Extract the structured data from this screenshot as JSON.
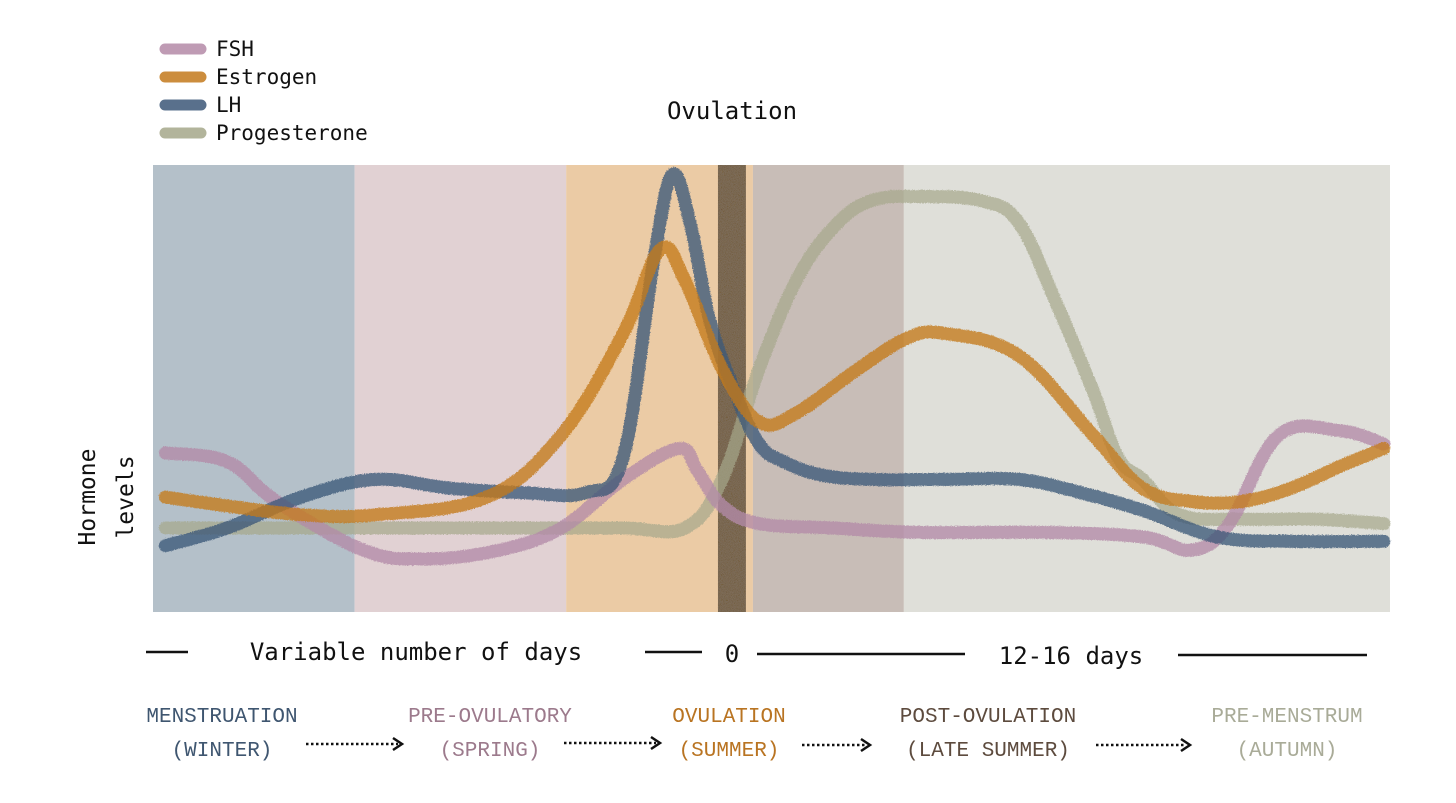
{
  "colors": {
    "FSH": "#b48aa8",
    "Estrogen": "#c47a1c",
    "LH": "#3d5878",
    "Progesterone": "#a5a88a",
    "ovulation_bar": "#5b4a34"
  },
  "chart_data": {
    "type": "line",
    "title": "",
    "ylabel": "Hormone levels",
    "xlabel": "",
    "annotation": "Ovulation",
    "legend_position": "top-left",
    "grid": false,
    "ylim": [
      0,
      100
    ],
    "xlim": [
      0,
      100
    ],
    "legend": [
      {
        "name": "FSH",
        "color": "#b48aa8"
      },
      {
        "name": "Estrogen",
        "color": "#c47a1c"
      },
      {
        "name": "LH",
        "color": "#3d5878"
      },
      {
        "name": "Progesterone",
        "color": "#a5a88a"
      }
    ],
    "phases": [
      {
        "name": "MENSTRUATION",
        "season": "(WINTER)",
        "start": 0,
        "end": 16.3,
        "color": "#b4c0c9",
        "text_color": "#3f5670"
      },
      {
        "name": "PRE-OVULATORY",
        "season": "(SPRING)",
        "start": 16.3,
        "end": 33.4,
        "color": "#e1d1d3",
        "text_color": "#9c7a8c"
      },
      {
        "name": "OVULATION",
        "season": "(SUMMER)",
        "start": 33.4,
        "end": 48.5,
        "color": "#ebcba5",
        "text_color": "#b97422"
      },
      {
        "name": "POST-OVULATION",
        "season": "(LATE SUMMER)",
        "start": 48.5,
        "end": 60.7,
        "color": "#c8bdb7",
        "text_color": "#5d4b3e"
      },
      {
        "name": "PRE-MENSTRUM",
        "season": "(AUTUMN)",
        "start": 60.7,
        "end": 100,
        "color": "#dfdfd9",
        "text_color": "#a9ab98"
      }
    ],
    "ovulation_x": 46.8,
    "series": [
      {
        "name": "FSH",
        "x": [
          1,
          6,
          10,
          17,
          22,
          28,
          33,
          38,
          42.5,
          44,
          46,
          49,
          55,
          62,
          72,
          80,
          84,
          87,
          91,
          96,
          99.5
        ],
        "values": [
          36,
          34,
          25,
          14,
          12,
          14,
          19,
          30,
          37,
          32,
          24,
          20,
          19,
          18,
          18,
          17,
          14,
          20,
          40,
          41,
          38
        ]
      },
      {
        "name": "Estrogen",
        "x": [
          1,
          6,
          12,
          18,
          27,
          33,
          38,
          41,
          43,
          46,
          49,
          52,
          57,
          61,
          64,
          70,
          76,
          80,
          84,
          88,
          92,
          96,
          99.5
        ],
        "values": [
          26,
          24,
          22,
          22,
          26,
          40,
          63,
          82,
          75,
          55,
          43,
          45,
          55,
          62,
          63,
          58,
          40,
          28,
          25,
          25,
          28,
          33,
          37
        ]
      },
      {
        "name": "LH",
        "x": [
          1,
          6,
          12,
          18,
          24,
          30,
          35,
          38,
          40.5,
          42,
          43.5,
          45,
          47,
          49,
          51,
          54,
          58,
          64,
          70,
          75,
          80,
          86,
          92,
          99.5
        ],
        "values": [
          15,
          19,
          26,
          30,
          28,
          27,
          27,
          35,
          80,
          99,
          87,
          66,
          50,
          38,
          34,
          31,
          30,
          30,
          30,
          27,
          23,
          17,
          16,
          16
        ]
      },
      {
        "name": "Progesterone",
        "x": [
          1,
          10,
          20,
          30,
          38,
          43,
          46,
          49,
          52,
          55,
          58,
          62,
          67,
          70,
          73,
          76,
          78,
          80,
          83,
          88,
          94,
          99.5
        ],
        "values": [
          19,
          19,
          19,
          19,
          19,
          19,
          30,
          55,
          75,
          87,
          93,
          94,
          93,
          88,
          70,
          50,
          35,
          30,
          22,
          21,
          21,
          20
        ]
      }
    ]
  },
  "axis_labels": {
    "ylabel_line1": "Hormone",
    "ylabel_line2": "levels",
    "variable_days": "Variable number of days",
    "zero": "0",
    "luteal_days": "12-16 days"
  }
}
